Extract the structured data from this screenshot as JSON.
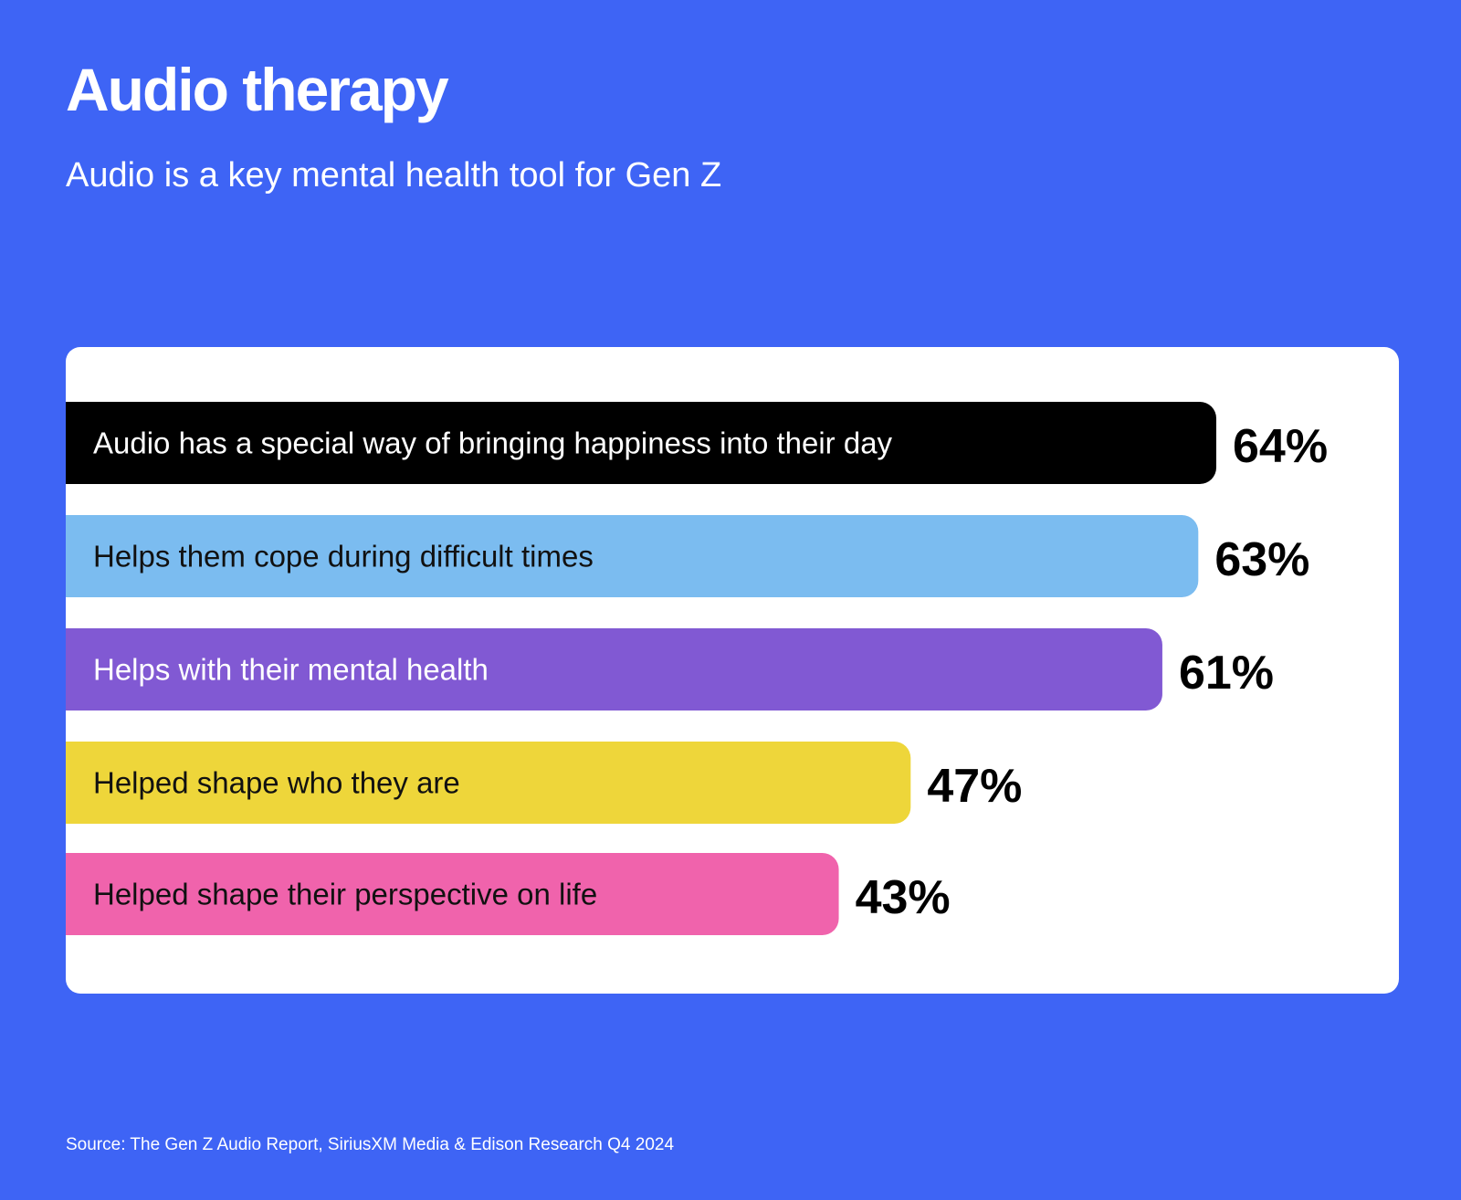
{
  "header": {
    "title": "Audio therapy",
    "subtitle": "Audio is a key mental health tool for Gen Z"
  },
  "colors": {
    "background": "#3e64f5",
    "card": "#ffffff"
  },
  "chart_data": {
    "type": "bar",
    "orientation": "horizontal",
    "categories": [
      "Audio has a special way of bringing happiness into their day",
      "Helps them cope during difficult times",
      "Helps with their mental health",
      "Helped shape who they are",
      "Helped shape their perspective on life"
    ],
    "values": [
      64,
      63,
      61,
      47,
      43
    ],
    "value_labels": [
      "64%",
      "63%",
      "61%",
      "47%",
      "43%"
    ],
    "bar_colors": [
      "#000000",
      "#7bbcf0",
      "#8159d3",
      "#eed63a",
      "#f063ac"
    ],
    "label_colors": [
      "#ffffff",
      "#111111",
      "#ffffff",
      "#111111",
      "#111111"
    ],
    "grid": false,
    "legend": "none"
  },
  "footer": {
    "source": "Source: The Gen Z Audio Report, SiriusXM Media & Edison Research Q4 2024"
  }
}
